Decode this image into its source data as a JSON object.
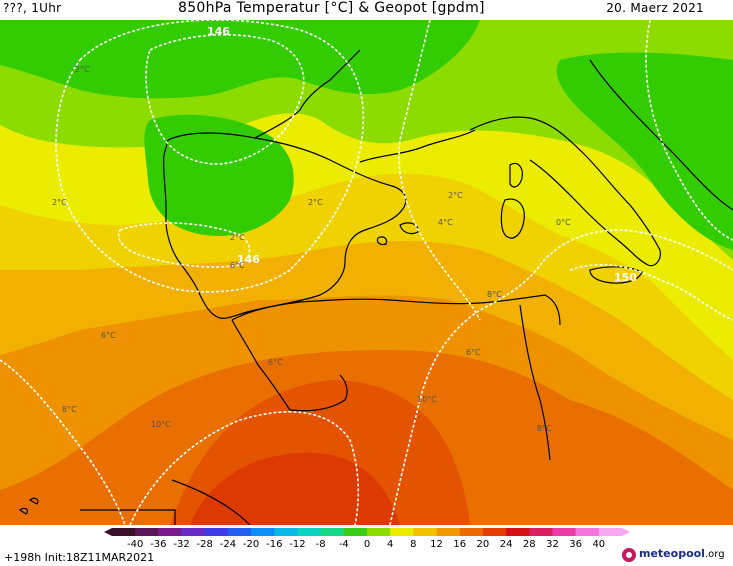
{
  "header": {
    "left_text": "???, 1Uhr",
    "title": "850hPa Temperatur [°C] & Geopot [gpdm]",
    "date": "20. Maerz 2021"
  },
  "map": {
    "geopotential_labels": [
      "146",
      "146",
      "150"
    ],
    "temperature_labels": [
      "-2°C",
      "2°C",
      "2°C",
      "2°C",
      "2°C",
      "4°C",
      "0°C",
      "6°C",
      "6°C",
      "8°C",
      "6°C",
      "6°C",
      "8°C",
      "10°C",
      "10°C",
      "8°C"
    ],
    "colors": {
      "zone_minus2": "#33cc00",
      "zone_0": "#8cdc00",
      "zone_2": "#ecec00",
      "zone_4": "#f0d200",
      "zone_6": "#f2b100",
      "zone_8": "#ee9200",
      "zone_10": "#e97000",
      "zone_12": "#e45300",
      "zone_14": "#dc3a00",
      "contour": "#ffffff",
      "coast": "#000000"
    }
  },
  "colorbar": {
    "labels": [
      "-40",
      "-36",
      "-32",
      "-28",
      "-24",
      "-20",
      "-16",
      "-12",
      "-8",
      "-4",
      "0",
      "4",
      "8",
      "12",
      "16",
      "20",
      "24",
      "28",
      "32",
      "36",
      "40"
    ],
    "colors": [
      "#3a0f2a",
      "#5a1458",
      "#7a1a8e",
      "#6a2cc8",
      "#3c3ce6",
      "#2460f0",
      "#0a8ef4",
      "#08b8e6",
      "#0ad2c0",
      "#14d884",
      "#3ccc1a",
      "#8cdc00",
      "#ecec00",
      "#f2c400",
      "#f09a00",
      "#ea6a00",
      "#e23c00",
      "#d41016",
      "#dc1f63",
      "#ec3ca8",
      "#f474dc",
      "#f8a8f2"
    ]
  },
  "footer": {
    "run_info": "+198h Init:18Z11MAR2021",
    "logo_main": "meteopool",
    "logo_suffix": ".org"
  }
}
